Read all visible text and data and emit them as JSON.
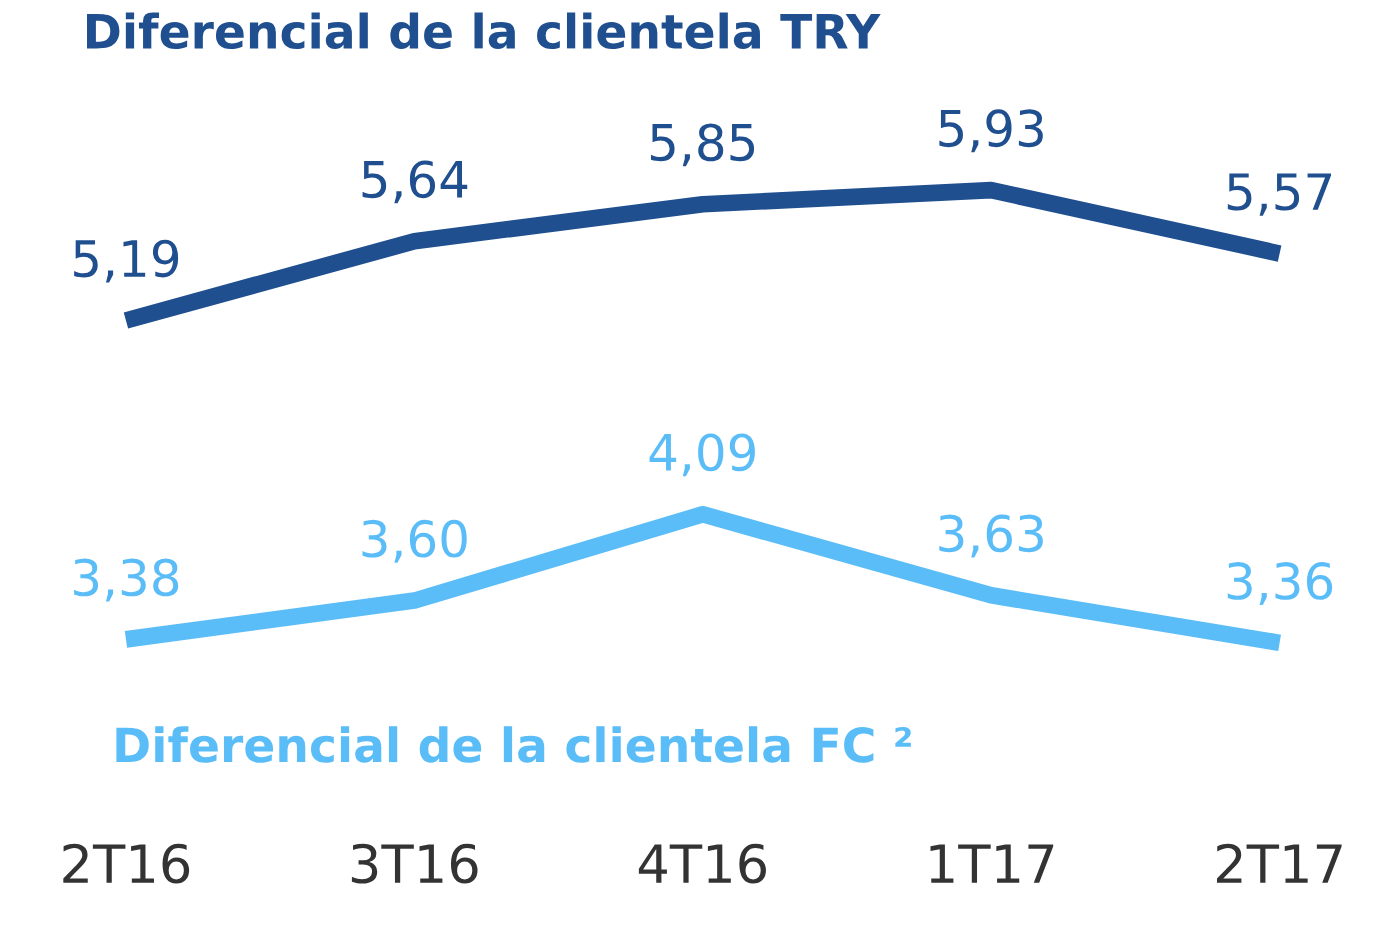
{
  "chart_data": {
    "type": "line",
    "categories": [
      "2T16",
      "3T16",
      "4T16",
      "1T17",
      "2T17"
    ],
    "series": [
      {
        "name": "Diferencial de la clientela TRY",
        "color": "#1f4f8f",
        "values": [
          5.19,
          5.64,
          5.85,
          5.93,
          5.57
        ],
        "value_labels": [
          "5,19",
          "5,64",
          "5,85",
          "5,93",
          "5,57"
        ]
      },
      {
        "name": "Diferencial de la clientela FC ²",
        "color": "#5bbdf8",
        "values": [
          3.38,
          3.6,
          4.09,
          3.63,
          3.36
        ],
        "value_labels": [
          "3,38",
          "3,60",
          "4,09",
          "3,63",
          "3,36"
        ]
      }
    ],
    "legend": false,
    "grid": false,
    "marker": "none",
    "line_style": "solid",
    "tick_labels": "x"
  }
}
